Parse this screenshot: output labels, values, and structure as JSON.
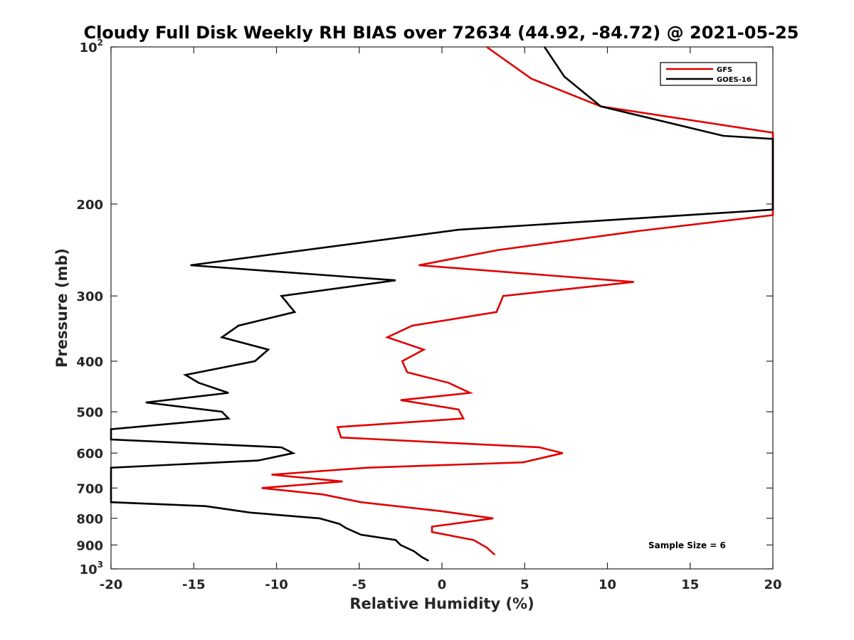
{
  "chart_data": {
    "type": "line",
    "title": "Cloudy Full Disk Weekly RH BIAS over 72634 (44.92, -84.72) @ 2021-05-25",
    "xlabel": "Relative Humidity (%)",
    "ylabel": "Pressure (mb)",
    "xlim": [
      -20,
      20
    ],
    "ylim": [
      1000,
      100
    ],
    "y_scale": "log",
    "x_ticks": [
      "-20",
      "-15",
      "-10",
      "-5",
      "0",
      "5",
      "10",
      "15",
      "20"
    ],
    "y_ticks": [
      {
        "base": "10",
        "exp": "2"
      },
      {
        "base": "200",
        "exp": ""
      },
      {
        "base": "300",
        "exp": ""
      },
      {
        "base": "400",
        "exp": ""
      },
      {
        "base": "500",
        "exp": ""
      },
      {
        "base": "600",
        "exp": ""
      },
      {
        "base": "700",
        "exp": ""
      },
      {
        "base": "800",
        "exp": ""
      },
      {
        "base": "900",
        "exp": ""
      },
      {
        "base": "10",
        "exp": "3"
      }
    ],
    "grid": false,
    "legend_position": "top-right",
    "annotation": "Sample Size = 6",
    "series": [
      {
        "name": "GFS",
        "color": "#e00000",
        "points": [
          [
            2.7,
            100
          ],
          [
            5.4,
            115
          ],
          [
            9.6,
            130
          ],
          [
            20,
            146
          ],
          [
            20,
            210
          ],
          [
            12.0,
            225
          ],
          [
            3.4,
            245
          ],
          [
            -1.4,
            262
          ],
          [
            11.6,
            282
          ],
          [
            3.7,
            300
          ],
          [
            3.3,
            322
          ],
          [
            -1.8,
            342
          ],
          [
            -3.3,
            360
          ],
          [
            -1.1,
            380
          ],
          [
            -2.4,
            400
          ],
          [
            -2.1,
            420
          ],
          [
            0.4,
            440
          ],
          [
            1.7,
            460
          ],
          [
            -2.5,
            475
          ],
          [
            1.0,
            495
          ],
          [
            1.3,
            515
          ],
          [
            -6.3,
            535
          ],
          [
            -6.1,
            560
          ],
          [
            5.9,
            585
          ],
          [
            7.3,
            600
          ],
          [
            4.9,
            625
          ],
          [
            -4.5,
            640
          ],
          [
            -10.3,
            660
          ],
          [
            -6.0,
            680
          ],
          [
            -10.9,
            700
          ],
          [
            -7.2,
            720
          ],
          [
            -4.9,
            745
          ],
          [
            -0.1,
            775
          ],
          [
            3.1,
            800
          ],
          [
            -0.6,
            830
          ],
          [
            -0.6,
            850
          ],
          [
            1.9,
            880
          ],
          [
            2.7,
            910
          ],
          [
            3.2,
            940
          ]
        ]
      },
      {
        "name": "GOES-16",
        "color": "#000000",
        "points": [
          [
            6.2,
            100
          ],
          [
            7.4,
            114
          ],
          [
            9.6,
            130
          ],
          [
            17.0,
            148
          ],
          [
            20,
            150
          ],
          [
            20,
            205
          ],
          [
            1.0,
            224
          ],
          [
            -15.2,
            262
          ],
          [
            -2.8,
            280
          ],
          [
            -9.7,
            300
          ],
          [
            -8.9,
            322
          ],
          [
            -12.3,
            342
          ],
          [
            -13.3,
            360
          ],
          [
            -10.5,
            380
          ],
          [
            -11.3,
            400
          ],
          [
            -15.5,
            425
          ],
          [
            -14.7,
            440
          ],
          [
            -12.9,
            460
          ],
          [
            -17.9,
            480
          ],
          [
            -13.3,
            500
          ],
          [
            -12.9,
            515
          ],
          [
            -20,
            540
          ],
          [
            -20,
            565
          ],
          [
            -9.7,
            585
          ],
          [
            -9.0,
            600
          ],
          [
            -11.1,
            620
          ],
          [
            -20,
            640
          ],
          [
            -20,
            745
          ],
          [
            -14.3,
            758
          ],
          [
            -11.6,
            780
          ],
          [
            -7.4,
            800
          ],
          [
            -6.2,
            820
          ],
          [
            -5.8,
            835
          ],
          [
            -4.9,
            860
          ],
          [
            -2.8,
            880
          ],
          [
            -2.5,
            900
          ],
          [
            -1.7,
            925
          ],
          [
            -1.2,
            950
          ],
          [
            -0.8,
            965
          ]
        ]
      }
    ]
  }
}
